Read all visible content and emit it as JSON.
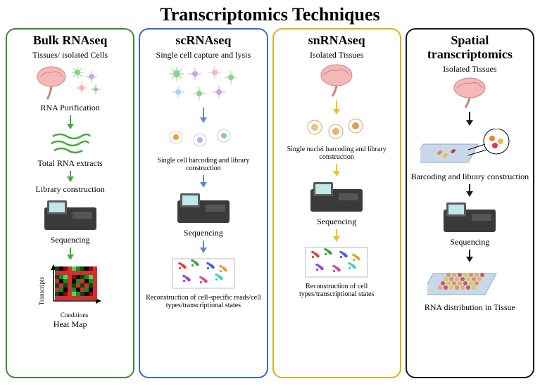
{
  "title": "Transcriptomics Techniques",
  "title_fontsize": 26,
  "panel_border_width": 2,
  "panel_border_radius": 14,
  "label_fontsize": 12,
  "small_label_fontsize": 10,
  "panels": [
    {
      "id": "bulk",
      "title": "Bulk RNAseq",
      "title_fontsize": 18,
      "border_color": "#3a8a3a",
      "arrow_color": "#3fae3f",
      "steps": [
        "Tissues/ isolated Cells",
        "RNA Purification",
        "Total RNA extracts",
        "Library construction",
        "Sequencing"
      ],
      "output_label": "Heat Map",
      "heatmap_axes": {
        "y": "Transcripts",
        "x": "Conditions"
      },
      "brain_color": "#f4b8b8",
      "cell_colors": [
        "#8ed08e",
        "#f4b8b8",
        "#c8a8e0"
      ],
      "rna_color": "#3fae3f",
      "sequencer_colors": {
        "body": "#3a3a3a",
        "screen": "#bfe8e8"
      },
      "heatmap_colors": [
        "#0a4a0a",
        "#1a8a1a",
        "#5ad05a",
        "#d03030",
        "#8a0a0a",
        "#000000"
      ]
    },
    {
      "id": "sc",
      "title": "scRNAseq",
      "title_fontsize": 18,
      "border_color": "#3a6ad0",
      "arrow_color": "#5a8ae0",
      "steps": [
        "Single cell capture and lysis",
        "Single cell barcoding and library construction",
        "Sequencing",
        "Reconstruction of cell-specific reads/cell types/transcriptional states"
      ],
      "cell_colors": [
        "#8ed08e",
        "#f4b8b8",
        "#c8a8e0",
        "#a0d8f0"
      ],
      "barcode_colors": [
        "#f0a030",
        "#c8a8e0",
        "#90d090"
      ],
      "sequencer_colors": {
        "body": "#3a3a3a",
        "screen": "#bfe8e8"
      },
      "cluster_colors": [
        "#e04040",
        "#40a040",
        "#4060e0",
        "#e0a030",
        "#a040e0",
        "#e040a0",
        "#40d0d0"
      ]
    },
    {
      "id": "sn",
      "title": "snRNAseq",
      "title_fontsize": 18,
      "border_color": "#e0b020",
      "arrow_color": "#f0c030",
      "steps": [
        "Isolated Tissues",
        "Single nuclei barcoding and library construction",
        "Sequencing",
        "Reconstruction of cell types/transcriptional states"
      ],
      "brain_color": "#f4b8b8",
      "nuclei_colors": [
        "#f0c080",
        "#d8a060",
        "#e8b070"
      ],
      "sequencer_colors": {
        "body": "#3a3a3a",
        "screen": "#bfe8e8"
      },
      "cluster_colors": [
        "#e04040",
        "#40a040",
        "#4060e0",
        "#e0a030",
        "#a040e0",
        "#e040a0",
        "#40d0d0"
      ]
    },
    {
      "id": "spatial",
      "title": "Spatial transcriptomics",
      "title_fontsize": 18,
      "border_color": "#1a1a1a",
      "arrow_color": "#1a1a1a",
      "steps": [
        "Isolated Tissues",
        "Barcoding and library construction",
        "Sequencing",
        "RNA distribution in Tissue"
      ],
      "brain_color": "#f4b8b8",
      "slide_color": "#c8d8e8",
      "sequencer_colors": {
        "body": "#3a3a3a",
        "screen": "#bfe8e8"
      },
      "tissue_spot_colors": [
        "#f08030",
        "#e0c040",
        "#d04040",
        "#f0a050"
      ]
    }
  ]
}
